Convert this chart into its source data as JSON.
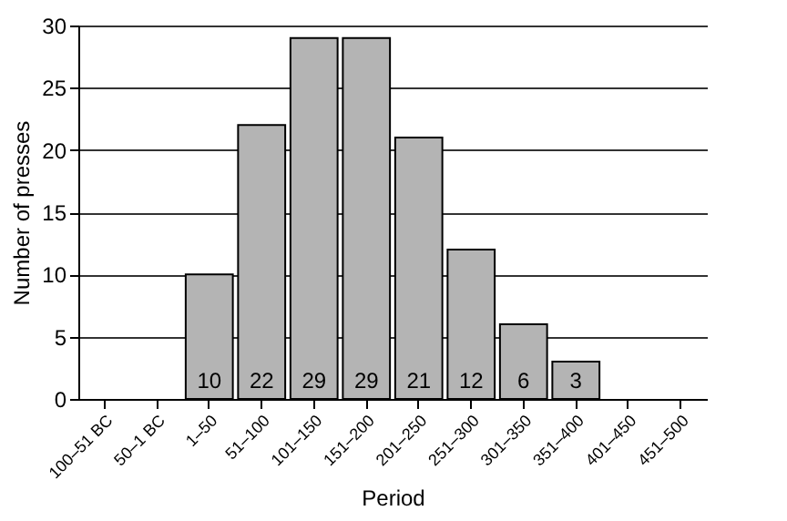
{
  "chart_data": {
    "type": "bar",
    "xlabel": "Period",
    "ylabel": "Number of presses",
    "categories": [
      "100–51 BC",
      "50–1 BC",
      "1–50",
      "51–100",
      "101–150",
      "151–200",
      "201–250",
      "251–300",
      "301–350",
      "351–400",
      "401–450",
      "451–500"
    ],
    "values": [
      null,
      null,
      10,
      22,
      29,
      29,
      21,
      12,
      6,
      3,
      null,
      null
    ],
    "color": "#b4b4b4",
    "ylim": [
      0,
      30
    ],
    "yticks": [
      0,
      5,
      10,
      15,
      20,
      25,
      30
    ],
    "grid": "y",
    "data_labels": true
  }
}
